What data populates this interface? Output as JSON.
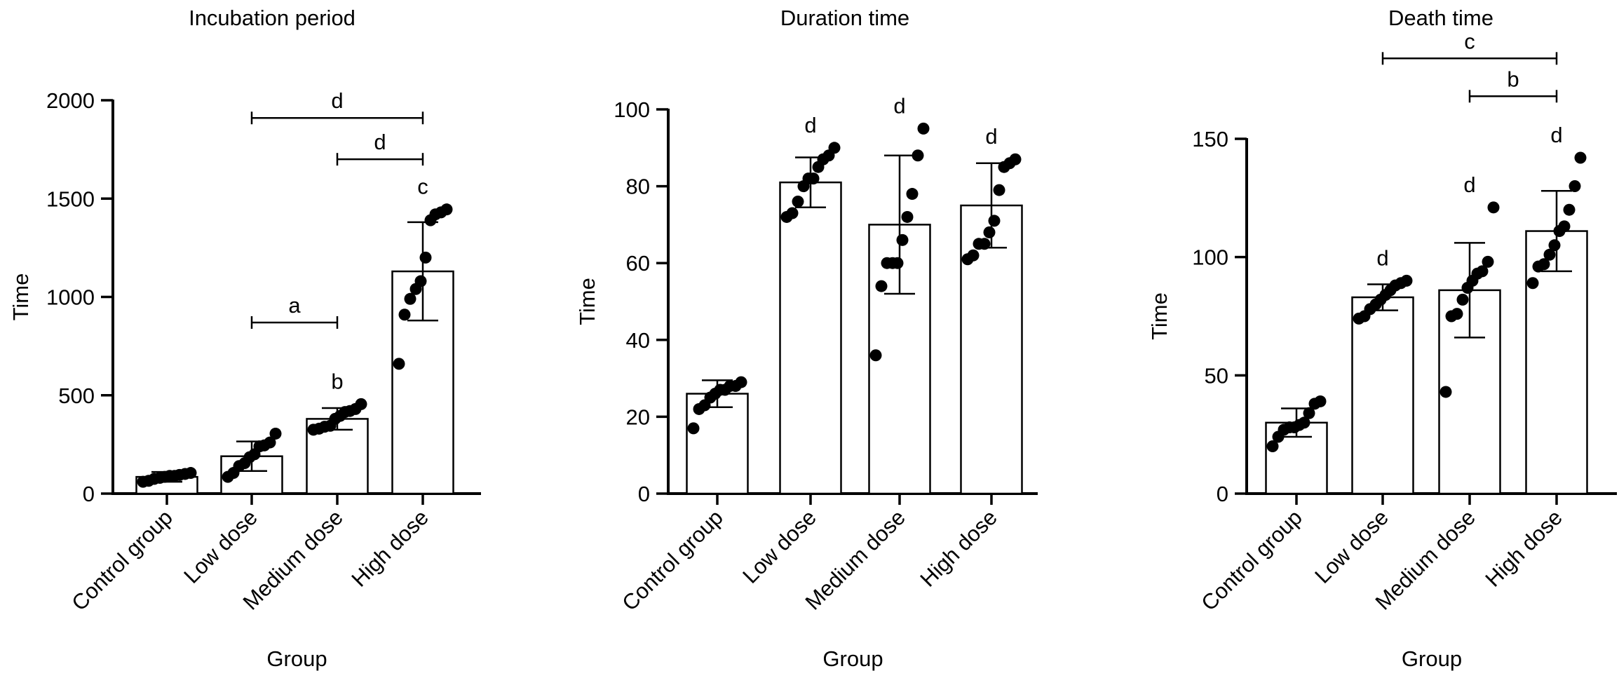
{
  "chart_data": [
    {
      "type": "bar",
      "title": "Incubation period",
      "xlabel": "Group",
      "ylabel": "Time",
      "categories": [
        "Control group",
        "Low dose",
        "Medium dose",
        "High dose"
      ],
      "ylim": [
        0,
        2000
      ],
      "yticks": [
        0,
        500,
        1000,
        1500,
        2000
      ],
      "means": [
        85,
        190,
        380,
        1130
      ],
      "sd": [
        25,
        75,
        55,
        250
      ],
      "points": [
        [
          60,
          65,
          75,
          80,
          85,
          90,
          90,
          95,
          100,
          105
        ],
        [
          85,
          105,
          140,
          155,
          185,
          200,
          240,
          245,
          260,
          305
        ],
        [
          325,
          330,
          340,
          345,
          380,
          395,
          415,
          420,
          430,
          455
        ],
        [
          660,
          910,
          990,
          1040,
          1080,
          1200,
          1390,
          1420,
          1430,
          1445
        ]
      ],
      "sig_labels": [
        "",
        "",
        "b",
        "c"
      ],
      "brackets": [
        {
          "from": 1,
          "to": 2,
          "y": 870,
          "label": "a"
        },
        {
          "from": 2,
          "to": 3,
          "y": 1700,
          "label": "d"
        },
        {
          "from": 1,
          "to": 3,
          "y": 1910,
          "label": "d"
        }
      ]
    },
    {
      "type": "bar",
      "title": "Duration time",
      "xlabel": "Group",
      "ylabel": "Time",
      "categories": [
        "Control group",
        "Low dose",
        "Medium dose",
        "High dose"
      ],
      "ylim": [
        0,
        100
      ],
      "yticks": [
        0,
        20,
        40,
        60,
        80,
        100
      ],
      "means": [
        26,
        81,
        70,
        75
      ],
      "sd": [
        3.5,
        6.5,
        18,
        11
      ],
      "points": [
        [
          17,
          22,
          23,
          25,
          26,
          27,
          27,
          28,
          28,
          29
        ],
        [
          72,
          73,
          76,
          80,
          82,
          82,
          85,
          87,
          88,
          90
        ],
        [
          36,
          54,
          60,
          60,
          60,
          66,
          72,
          78,
          88,
          95
        ],
        [
          61,
          62,
          65,
          65,
          68,
          71,
          79,
          85,
          86,
          87
        ]
      ],
      "sig_labels": [
        "",
        "d",
        "d",
        "d"
      ],
      "brackets": []
    },
    {
      "type": "bar",
      "title": "Death time",
      "xlabel": "Group",
      "ylabel": "Time",
      "categories": [
        "Control group",
        "Low dose",
        "Medium dose",
        "High dose"
      ],
      "ylim": [
        0,
        150
      ],
      "yticks": [
        0,
        50,
        100,
        150
      ],
      "means": [
        30,
        83,
        86,
        111
      ],
      "sd": [
        6,
        5.5,
        20,
        17
      ],
      "points": [
        [
          20,
          24,
          27,
          28,
          28,
          29,
          30,
          34,
          38,
          39
        ],
        [
          74,
          75,
          78,
          80,
          82,
          84,
          86,
          88,
          89,
          90
        ],
        [
          43,
          75,
          76,
          82,
          87,
          90,
          93,
          94,
          98,
          121
        ],
        [
          89,
          96,
          97,
          101,
          105,
          111,
          113,
          120,
          130,
          142
        ]
      ],
      "sig_labels": [
        "",
        "d",
        "d",
        "d"
      ],
      "brackets": [
        {
          "from": 2,
          "to": 3,
          "y": 168,
          "label": "b"
        },
        {
          "from": 1,
          "to": 3,
          "y": 184,
          "label": "c"
        }
      ]
    }
  ]
}
